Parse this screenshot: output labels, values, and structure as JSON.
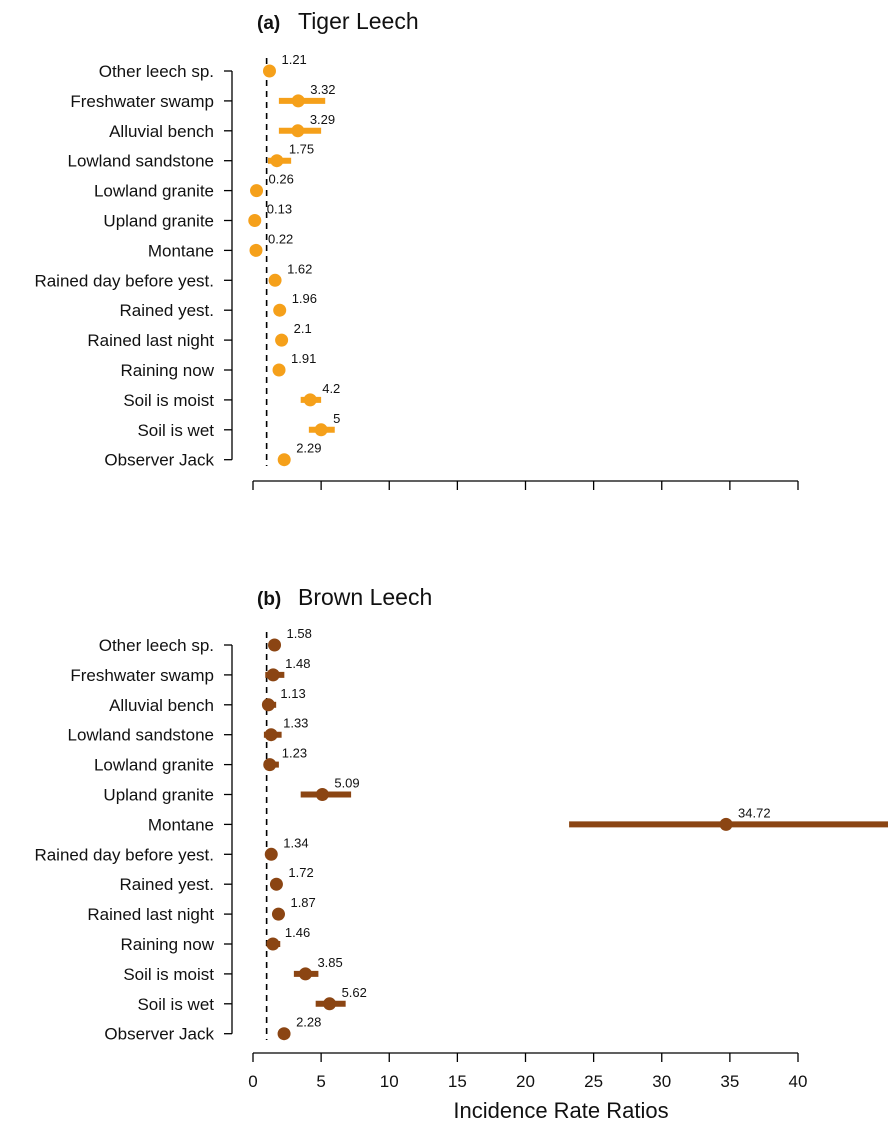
{
  "colors": {
    "tiger": "#f5a01a",
    "brown": "#8b4513"
  },
  "xaxis": {
    "label": "Incidence Rate Ratios",
    "xlim": [
      0,
      40
    ],
    "ticks": [
      0,
      5,
      10,
      15,
      20,
      25,
      30,
      35,
      40
    ],
    "tick_labels": [
      "0",
      "5",
      "10",
      "15",
      "20",
      "25",
      "30",
      "35",
      "40"
    ],
    "reference_line": 1,
    "reference_style": "dashed"
  },
  "chart_data": [
    {
      "type": "forest",
      "panel_label": "(a)",
      "title": "Tiger Leech",
      "color": "#f5a01a",
      "categories": [
        "Other leech sp.",
        "Freshwater swamp",
        "Alluvial bench",
        "Lowland sandstone",
        "Lowland granite",
        "Upland granite",
        "Montane",
        "Rained day before yest.",
        "Rained yest.",
        "Rained last night",
        "Raining now",
        "Soil is moist",
        "Soil is wet",
        "Observer Jack"
      ],
      "estimates": [
        1.21,
        3.32,
        3.29,
        1.75,
        0.26,
        0.13,
        0.22,
        1.62,
        1.96,
        2.1,
        1.91,
        4.2,
        5,
        2.29
      ],
      "value_labels": [
        "1.21",
        "3.32",
        "3.29",
        "1.75",
        "0.26",
        "0.13",
        "0.22",
        "1.62",
        "1.96",
        "2.1",
        "1.91",
        "4.2",
        "5",
        "2.29"
      ],
      "ci_low": [
        1.1,
        1.9,
        1.9,
        1.1,
        0.2,
        0.1,
        0.15,
        1.4,
        1.7,
        1.85,
        1.65,
        3.5,
        4.1,
        2.0
      ],
      "ci_high": [
        1.35,
        5.3,
        5.0,
        2.8,
        0.35,
        0.2,
        0.3,
        1.9,
        2.3,
        2.4,
        2.2,
        5.0,
        6.0,
        2.6
      ],
      "xlim": [
        0,
        40
      ],
      "reference_line": 1
    },
    {
      "type": "forest",
      "panel_label": "(b)",
      "title": "Brown Leech",
      "color": "#8b4513",
      "categories": [
        "Other leech sp.",
        "Freshwater swamp",
        "Alluvial bench",
        "Lowland sandstone",
        "Lowland granite",
        "Upland granite",
        "Montane",
        "Rained day before yest.",
        "Rained yest.",
        "Rained last night",
        "Raining now",
        "Soil is moist",
        "Soil is wet",
        "Observer Jack"
      ],
      "estimates": [
        1.58,
        1.48,
        1.13,
        1.33,
        1.23,
        5.09,
        34.72,
        1.34,
        1.72,
        1.87,
        1.46,
        3.85,
        5.62,
        2.28
      ],
      "value_labels": [
        "1.58",
        "1.48",
        "1.13",
        "1.33",
        "1.23",
        "5.09",
        "34.72",
        "1.34",
        "1.72",
        "1.87",
        "1.46",
        "3.85",
        "5.62",
        "2.28"
      ],
      "ci_low": [
        1.35,
        0.9,
        0.7,
        0.8,
        0.8,
        3.5,
        23.2,
        1.1,
        1.45,
        1.6,
        1.0,
        3.0,
        4.6,
        2.0
      ],
      "ci_high": [
        1.8,
        2.3,
        1.7,
        2.1,
        1.9,
        7.2,
        47.0,
        1.6,
        2.0,
        2.15,
        2.0,
        4.8,
        6.8,
        2.6
      ],
      "xlim": [
        0,
        40
      ],
      "reference_line": 1
    }
  ]
}
